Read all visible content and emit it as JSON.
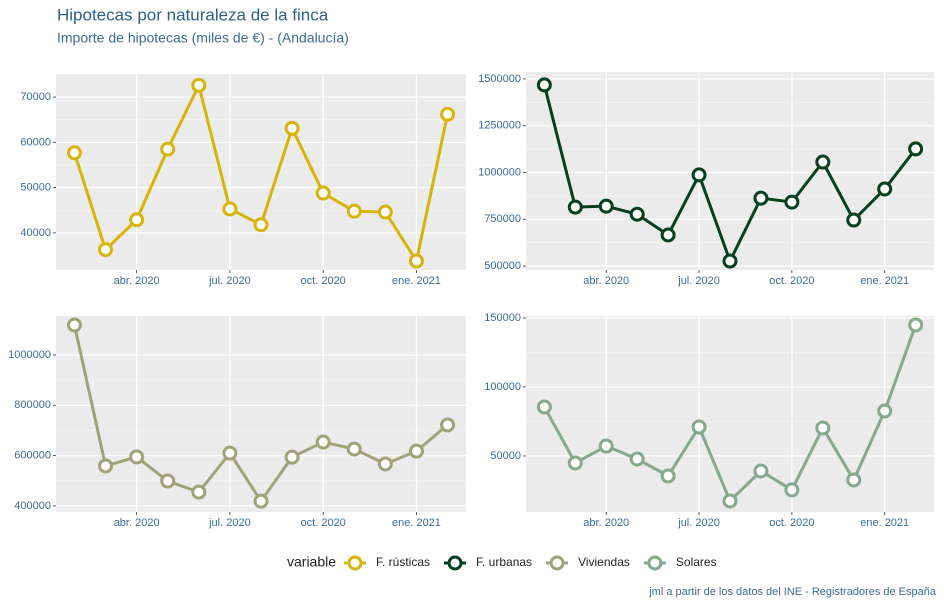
{
  "title": "Hipotecas por naturaleza de la finca",
  "subtitle": "Importe de hipotecas (miles de €) - (Andalucía)",
  "caption": "jml a partir de los datos del INE - Registradores de España",
  "legend_title": "variable",
  "chart_data": [
    {
      "type": "line",
      "grid": true,
      "x": [
        "2020-02",
        "2020-03",
        "2020-04",
        "2020-05",
        "2020-06",
        "2020-07",
        "2020-08",
        "2020-09",
        "2020-10",
        "2020-11",
        "2020-12",
        "2021-01",
        "2021-02"
      ],
      "xticks": [
        {
          "value": "2020-04",
          "label": "abr. 2020"
        },
        {
          "value": "2020-07",
          "label": "jul. 2020"
        },
        {
          "value": "2020-10",
          "label": "oct. 2020"
        },
        {
          "value": "2021-01",
          "label": "ene. 2021"
        }
      ],
      "ylim": [
        31800,
        75100
      ],
      "yticks": [
        40000,
        50000,
        60000,
        70000
      ],
      "series": [
        {
          "name": "F. rústicas",
          "color": "#d6b40c",
          "values": [
            57700,
            36300,
            42900,
            58500,
            72600,
            45300,
            41800,
            63100,
            48800,
            44800,
            44600,
            33800,
            66200
          ]
        }
      ]
    },
    {
      "type": "line",
      "grid": true,
      "x": [
        "2020-02",
        "2020-03",
        "2020-04",
        "2020-05",
        "2020-06",
        "2020-07",
        "2020-08",
        "2020-09",
        "2020-10",
        "2020-11",
        "2020-12",
        "2021-01",
        "2021-02"
      ],
      "xticks": [
        {
          "value": "2020-04",
          "label": "abr. 2020"
        },
        {
          "value": "2020-07",
          "label": "jul. 2020"
        },
        {
          "value": "2020-10",
          "label": "oct. 2020"
        },
        {
          "value": "2021-01",
          "label": "ene. 2021"
        }
      ],
      "ylim": [
        479000,
        1537000
      ],
      "yticks": [
        500000,
        750000,
        1000000,
        1250000,
        1500000
      ],
      "series": [
        {
          "name": "F. urbanas",
          "color": "#06401f",
          "values": [
            1468000,
            815000,
            820000,
            777000,
            666000,
            987000,
            527000,
            863000,
            842000,
            1056000,
            746000,
            912000,
            1126000
          ]
        }
      ]
    },
    {
      "type": "line",
      "grid": true,
      "x": [
        "2020-02",
        "2020-03",
        "2020-04",
        "2020-05",
        "2020-06",
        "2020-07",
        "2020-08",
        "2020-09",
        "2020-10",
        "2020-11",
        "2020-12",
        "2021-01",
        "2021-02"
      ],
      "xticks": [
        {
          "value": "2020-04",
          "label": "abr. 2020"
        },
        {
          "value": "2020-07",
          "label": "jul. 2020"
        },
        {
          "value": "2020-10",
          "label": "oct. 2020"
        },
        {
          "value": "2021-01",
          "label": "ene. 2021"
        }
      ],
      "ylim": [
        376000,
        1155000
      ],
      "yticks": [
        400000,
        600000,
        800000,
        1000000
      ],
      "series": [
        {
          "name": "Viviendas",
          "color": "#a0a27a",
          "values": [
            1119000,
            559000,
            595000,
            499000,
            455000,
            610000,
            419000,
            594000,
            654000,
            626000,
            567000,
            618000,
            722000
          ]
        }
      ]
    },
    {
      "type": "line",
      "grid": true,
      "x": [
        "2020-02",
        "2020-03",
        "2020-04",
        "2020-05",
        "2020-06",
        "2020-07",
        "2020-08",
        "2020-09",
        "2020-10",
        "2020-11",
        "2020-12",
        "2021-01",
        "2021-02"
      ],
      "xticks": [
        {
          "value": "2020-04",
          "label": "abr. 2020"
        },
        {
          "value": "2020-07",
          "label": "jul. 2020"
        },
        {
          "value": "2020-10",
          "label": "oct. 2020"
        },
        {
          "value": "2021-01",
          "label": "ene. 2021"
        }
      ],
      "ylim": [
        9400,
        151400
      ],
      "yticks": [
        50000,
        100000,
        150000
      ],
      "series": [
        {
          "name": "Solares",
          "color": "#86a88c",
          "values": [
            85500,
            44900,
            57200,
            47800,
            35500,
            71000,
            17400,
            39100,
            25400,
            70300,
            32600,
            82600,
            144900
          ]
        }
      ]
    }
  ]
}
